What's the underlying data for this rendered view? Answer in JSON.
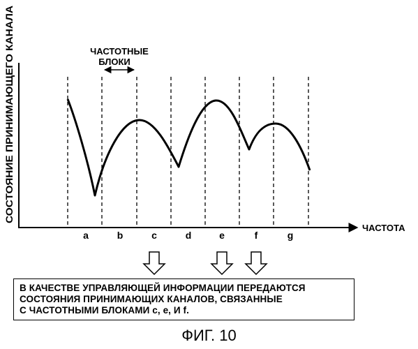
{
  "diagram": {
    "y_axis_label": "СОСТОЯНИЕ ПРИНИМАЮЩЕГО КАНАЛА",
    "x_axis_label": "ЧАСТОТА",
    "blocks_label_line1": "ЧАСТОТНЫЕ",
    "blocks_label_line2": "БЛОКИ",
    "block_labels": [
      "a",
      "b",
      "c",
      "d",
      "e",
      "f",
      "g"
    ],
    "selected_blocks": [
      "c",
      "e",
      "f"
    ]
  },
  "info_box": {
    "line1": "В КАЧЕСТВЕ УПРАВЛЯЮЩЕЙ ИНФОРМАЦИИ ПЕРЕДАЮТСЯ",
    "line2": "СОСТОЯНИЯ ПРИНИМАЮЩИХ КАНАЛОВ, СВЯЗАННЫЕ",
    "line3": "С ЧАСТОТНЫМИ БЛОКАМИ c, e,  И  f."
  },
  "caption": "ФИГ. 10"
}
